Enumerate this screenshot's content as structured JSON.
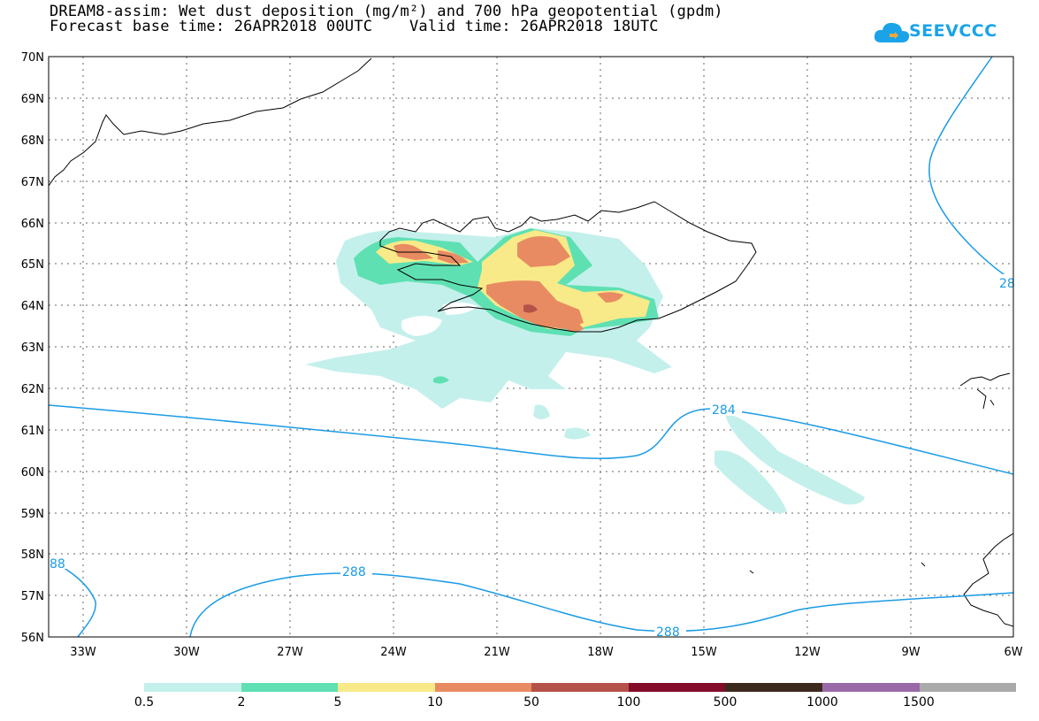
{
  "title": {
    "line1": "DREAM8-assim: Wet dust deposition (mg/m²) and 700 hPa geopotential (gpdm)",
    "line2_left": "Forecast base time: 26APR2018 00UTC",
    "line2_right": "Valid time: 26APR2018 18UTC"
  },
  "logo": {
    "text": "SEEVCCC",
    "icon": "cloud-icon",
    "color": "#1aa3e8"
  },
  "map": {
    "latitude_labels": [
      "70N",
      "69N",
      "68N",
      "67N",
      "66N",
      "65N",
      "64N",
      "63N",
      "62N",
      "61N",
      "60N",
      "59N",
      "58N",
      "57N",
      "56N"
    ],
    "longitude_labels": [
      "33W",
      "30W",
      "27W",
      "24W",
      "21W",
      "18W",
      "15W",
      "12W",
      "9W",
      "6W"
    ],
    "lat_range": [
      56,
      70
    ],
    "lon_range": [
      -34,
      -6
    ],
    "contour_color": "#1a9be6",
    "contour_labels": [
      "284",
      "288",
      "288",
      "88",
      "28"
    ]
  },
  "legend": {
    "colors": [
      "#c4f0eb",
      "#5ee0b3",
      "#f8ea88",
      "#e88b62",
      "#b4524a",
      "#830c2b",
      "#3d2a1f",
      "#9a6aa8",
      "#aaaaaa"
    ],
    "labels": [
      "0.5",
      "2",
      "5",
      "10",
      "50",
      "100",
      "500",
      "1000",
      "1500"
    ]
  }
}
